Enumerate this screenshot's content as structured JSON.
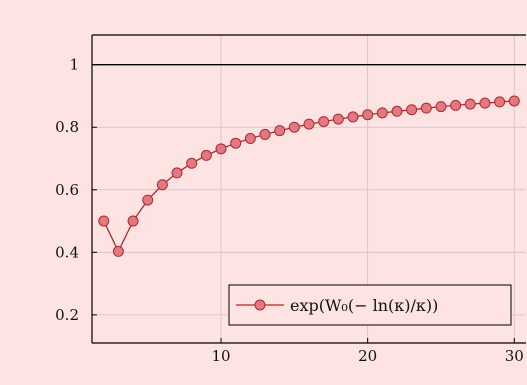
{
  "chart_data": {
    "type": "line",
    "title": "",
    "xlabel": "",
    "ylabel": "",
    "xlim": [
      1.2,
      30.8
    ],
    "ylim": [
      0.11,
      1.095
    ],
    "x_ticks": [
      10,
      20,
      30
    ],
    "x_tick_labels": [
      "10",
      "20",
      "30"
    ],
    "y_ticks": [
      0.2,
      0.4,
      0.6,
      0.8,
      1
    ],
    "y_tick_labels": [
      "0.2",
      "0.4",
      "0.6",
      "0.8",
      "1"
    ],
    "grid": true,
    "reference_line": 1,
    "legend_position": "bottom-right",
    "series": [
      {
        "name": "exp(W₀(− ln(κ)/κ))",
        "color": "#b5262f",
        "marker_fill": "#e07a80",
        "x": [
          2,
          3,
          4,
          5,
          6,
          7,
          8,
          9,
          10,
          11,
          12,
          13,
          14,
          15,
          16,
          17,
          18,
          19,
          20,
          21,
          22,
          23,
          24,
          25,
          26,
          27,
          28,
          29,
          30
        ],
        "y": [
          0.5,
          0.403,
          0.5,
          0.567,
          0.616,
          0.654,
          0.685,
          0.71,
          0.731,
          0.749,
          0.764,
          0.777,
          0.789,
          0.8,
          0.81,
          0.818,
          0.826,
          0.833,
          0.84,
          0.846,
          0.851,
          0.856,
          0.861,
          0.866,
          0.87,
          0.874,
          0.877,
          0.881,
          0.884
        ]
      }
    ]
  }
}
